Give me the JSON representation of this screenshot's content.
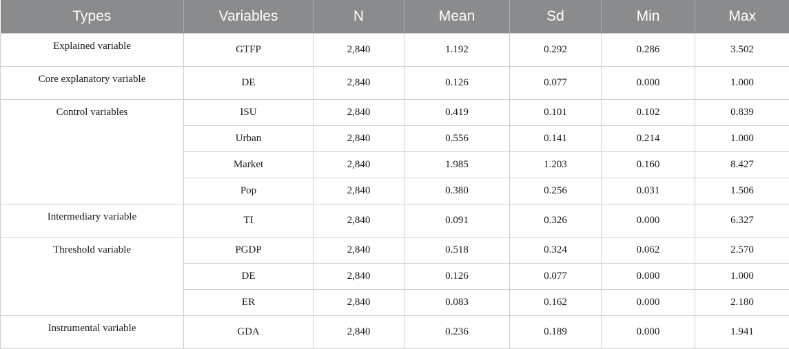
{
  "table": {
    "headers": [
      "Types",
      "Variables",
      "N",
      "Mean",
      "Sd",
      "Min",
      "Max"
    ],
    "groups": [
      {
        "type": "Explained variable",
        "rows": [
          [
            "GTFP",
            "2,840",
            "1.192",
            "0.292",
            "0.286",
            "3.502"
          ]
        ]
      },
      {
        "type": "Core explanatory variable",
        "rows": [
          [
            "DE",
            "2,840",
            "0.126",
            "0.077",
            "0.000",
            "1.000"
          ]
        ]
      },
      {
        "type": "Control variables",
        "rows": [
          [
            "ISU",
            "2,840",
            "0.419",
            "0.101",
            "0.102",
            "0.839"
          ],
          [
            "Urban",
            "2,840",
            "0.556",
            "0.141",
            "0.214",
            "1.000"
          ],
          [
            "Market",
            "2,840",
            "1.985",
            "1.203",
            "0.160",
            "8.427"
          ],
          [
            "Pop",
            "2,840",
            "0.380",
            "0.256",
            "0.031",
            "1.506"
          ]
        ]
      },
      {
        "type": "Intermediary variable",
        "rows": [
          [
            "TI",
            "2,840",
            "0.091",
            "0.326",
            "0.000",
            "6.327"
          ]
        ]
      },
      {
        "type": "Threshold variable",
        "rows": [
          [
            "PGDP",
            "2,840",
            "0.518",
            "0.324",
            "0.062",
            "2.570"
          ],
          [
            "DE",
            "2,840",
            "0.126",
            "0.077",
            "0.000",
            "1.000"
          ],
          [
            "ER",
            "2,840",
            "0.083",
            "0.162",
            "0.000",
            "2.180"
          ]
        ]
      },
      {
        "type": "Instrumental variable",
        "rows": [
          [
            "GDA",
            "2,840",
            "0.236",
            "0.189",
            "0.000",
            "1.941"
          ]
        ]
      }
    ]
  }
}
